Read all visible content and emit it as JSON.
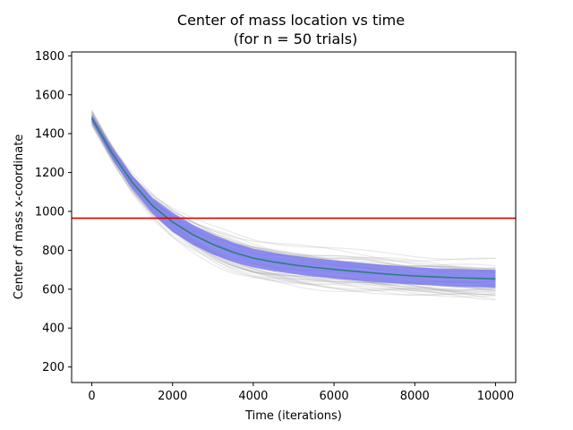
{
  "chart_data": {
    "type": "line",
    "title": "Center of mass location vs time",
    "subtitle": "(for n = 50 trials)",
    "xlabel": "Time (iterations)",
    "ylabel": "Center of mass x-coordinate",
    "xlim": [
      -500,
      10500
    ],
    "ylim": [
      120,
      1820
    ],
    "xticks": [
      0,
      2000,
      4000,
      6000,
      8000,
      10000
    ],
    "xtick_labels": [
      "0",
      "2000",
      "4000",
      "6000",
      "8000",
      "10000"
    ],
    "yticks": [
      200,
      400,
      600,
      800,
      1000,
      1200,
      1400,
      1600,
      1800
    ],
    "ytick_labels": [
      "200",
      "400",
      "600",
      "800",
      "1000",
      "1200",
      "1400",
      "1600",
      "1800"
    ],
    "grid": false,
    "n_trials": 50,
    "mean_series": {
      "x": [
        0,
        500,
        1000,
        1500,
        2000,
        2500,
        3000,
        3500,
        4000,
        4500,
        5000,
        5500,
        6000,
        6500,
        7000,
        7500,
        8000,
        8500,
        9000,
        9500,
        10000
      ],
      "y": [
        1480,
        1300,
        1150,
        1030,
        945,
        880,
        830,
        790,
        760,
        740,
        725,
        712,
        702,
        692,
        683,
        675,
        668,
        663,
        659,
        656,
        653
      ],
      "color": "#2e7d7d"
    },
    "std_band": {
      "x": [
        0,
        500,
        1000,
        1500,
        2000,
        2500,
        3000,
        3500,
        4000,
        4500,
        5000,
        5500,
        6000,
        6500,
        7000,
        7500,
        8000,
        8500,
        9000,
        9500,
        10000
      ],
      "lower": [
        1460,
        1270,
        1115,
        990,
        895,
        828,
        778,
        740,
        712,
        692,
        678,
        665,
        655,
        645,
        637,
        630,
        623,
        618,
        613,
        610,
        607
      ],
      "upper": [
        1500,
        1330,
        1185,
        1070,
        995,
        932,
        882,
        840,
        808,
        788,
        772,
        759,
        749,
        739,
        729,
        720,
        713,
        708,
        705,
        702,
        699
      ],
      "color": "#7b7bf0"
    },
    "reference_line": {
      "y": 965,
      "color": "#e00000"
    },
    "trial_line_color": "#9a9a9a"
  }
}
